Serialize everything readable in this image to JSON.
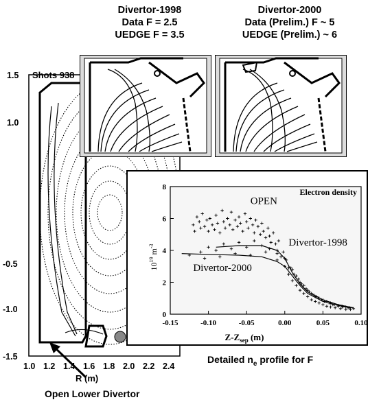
{
  "captions": {
    "divertor_1998": [
      "Divertor-1998",
      "Data F = 2.5",
      "UEDGE F = 3.5"
    ],
    "divertor_2000": [
      "Divertor-2000",
      "Data (Prelim.) F ~ 5",
      "UEDGE (Prelim.) ~ 6"
    ],
    "shots_label": "Shots 938",
    "open_lower_divertor": "Open Lower Divertor",
    "detailed_profile_pre": "Detailed n",
    "detailed_profile_sub": "e",
    "detailed_profile_post": " profile for F"
  },
  "equilibrium_axes": {
    "y_ticks": [
      "1.5",
      "1.0",
      "-0.5",
      "-1.0",
      "-1.5"
    ],
    "x_ticks": [
      "1.0",
      "1.2",
      "1.4",
      "1.6",
      "1.8",
      "2.0",
      "2.2",
      "2.4"
    ],
    "x_label": "R (m)"
  },
  "chart_data": {
    "type": "scatter",
    "title": "Electron density",
    "xlabel_main": "Z-Z",
    "xlabel_sub": "sep",
    "xlabel_unit": " (m)",
    "ylabel_main": "10",
    "ylabel_sup": "19",
    "ylabel_unit": " m",
    "ylabel_unit_sup": "-3",
    "xlim": [
      -0.15,
      0.1
    ],
    "ylim": [
      0,
      8
    ],
    "x_ticks": [
      "-0.15",
      "-0.10",
      "-0.05",
      "0.00",
      "0.05",
      "0.10"
    ],
    "y_ticks": [
      "0",
      "2",
      "4",
      "6",
      "8"
    ],
    "annotations": [
      {
        "text": "OPEN",
        "x": -0.045,
        "y": 6.9
      },
      {
        "text": "Divertor-1998",
        "x": 0.005,
        "y": 4.3
      },
      {
        "text": "Divertor-2000",
        "x": -0.12,
        "y": 2.7
      }
    ],
    "series": [
      {
        "points": [
          [
            -0.12,
            5.6
          ],
          [
            -0.118,
            5.2
          ],
          [
            -0.115,
            6.1
          ],
          [
            -0.112,
            5.8
          ],
          [
            -0.11,
            5.4
          ],
          [
            -0.108,
            6.3
          ],
          [
            -0.105,
            5.5
          ],
          [
            -0.102,
            5.9
          ],
          [
            -0.1,
            5.2
          ],
          [
            -0.098,
            6.0
          ],
          [
            -0.095,
            5.6
          ],
          [
            -0.092,
            5.3
          ],
          [
            -0.09,
            6.2
          ],
          [
            -0.088,
            5.7
          ],
          [
            -0.085,
            5.1
          ],
          [
            -0.082,
            6.5
          ],
          [
            -0.08,
            5.8
          ],
          [
            -0.078,
            5.4
          ],
          [
            -0.075,
            6.0
          ],
          [
            -0.072,
            5.6
          ],
          [
            -0.07,
            6.4
          ],
          [
            -0.068,
            5.3
          ],
          [
            -0.065,
            5.9
          ],
          [
            -0.062,
            5.5
          ],
          [
            -0.06,
            6.1
          ],
          [
            -0.058,
            5.7
          ],
          [
            -0.055,
            5.2
          ],
          [
            -0.052,
            6.3
          ],
          [
            -0.05,
            5.8
          ],
          [
            -0.048,
            5.4
          ],
          [
            -0.045,
            6.0
          ],
          [
            -0.042,
            5.6
          ],
          [
            -0.04,
            5.1
          ],
          [
            -0.038,
            5.9
          ],
          [
            -0.035,
            5.5
          ],
          [
            -0.032,
            5.0
          ],
          [
            -0.03,
            5.7
          ],
          [
            -0.028,
            5.2
          ],
          [
            -0.025,
            4.8
          ],
          [
            -0.022,
            5.4
          ],
          [
            -0.02,
            4.9
          ],
          [
            -0.018,
            4.5
          ],
          [
            -0.015,
            5.1
          ],
          [
            -0.012,
            4.4
          ],
          [
            -0.01,
            4.0
          ],
          [
            -0.008,
            4.6
          ],
          [
            -0.005,
            3.6
          ],
          [
            -0.002,
            3.9
          ],
          [
            0.0,
            3.0
          ],
          [
            0.002,
            3.4
          ],
          [
            0.005,
            2.5
          ],
          [
            0.008,
            2.9
          ],
          [
            0.01,
            2.1
          ],
          [
            0.012,
            2.5
          ],
          [
            0.015,
            1.8
          ],
          [
            0.018,
            2.2
          ],
          [
            0.02,
            1.5
          ],
          [
            0.022,
            1.9
          ],
          [
            0.025,
            1.3
          ],
          [
            0.028,
            1.6
          ],
          [
            0.03,
            1.1
          ],
          [
            0.032,
            1.4
          ],
          [
            0.035,
            0.9
          ],
          [
            0.038,
            1.2
          ],
          [
            0.04,
            0.8
          ],
          [
            0.042,
            1.1
          ],
          [
            0.045,
            0.7
          ],
          [
            0.048,
            0.9
          ],
          [
            0.05,
            0.6
          ],
          [
            0.052,
            0.8
          ],
          [
            0.055,
            0.5
          ],
          [
            0.058,
            0.7
          ],
          [
            0.06,
            0.45
          ],
          [
            0.063,
            0.6
          ],
          [
            0.066,
            0.4
          ],
          [
            0.07,
            0.5
          ],
          [
            0.073,
            0.35
          ],
          [
            0.076,
            0.45
          ],
          [
            0.08,
            0.3
          ],
          [
            0.083,
            0.4
          ],
          [
            0.086,
            0.3
          ],
          [
            0.09,
            0.35
          ],
          [
            -0.11,
            3.9
          ],
          [
            -0.1,
            4.2
          ],
          [
            -0.09,
            4.0
          ],
          [
            -0.08,
            4.4
          ],
          [
            -0.07,
            4.1
          ],
          [
            -0.06,
            4.5
          ],
          [
            -0.05,
            4.2
          ],
          [
            -0.04,
            4.6
          ],
          [
            -0.03,
            4.3
          ],
          [
            -0.02,
            4.1
          ],
          [
            -0.01,
            3.8
          ],
          [
            0.0,
            3.5
          ],
          [
            0.01,
            2.8
          ],
          [
            0.015,
            2.4
          ],
          [
            0.025,
            1.8
          ],
          [
            0.035,
            1.3
          ],
          [
            0.045,
            1.0
          ],
          [
            0.055,
            0.8
          ],
          [
            0.065,
            0.6
          ],
          [
            0.075,
            0.5
          ],
          [
            0.085,
            0.4
          ],
          [
            -0.125,
            3.7
          ],
          [
            -0.105,
            3.5
          ],
          [
            -0.085,
            3.6
          ],
          [
            -0.065,
            3.8
          ],
          [
            -0.045,
            3.7
          ],
          [
            -0.025,
            3.9
          ],
          [
            -0.01,
            3.4
          ],
          [
            0.005,
            2.9
          ],
          [
            0.02,
            2.0
          ],
          [
            0.03,
            1.5
          ],
          [
            0.04,
            1.1
          ],
          [
            0.05,
            0.9
          ],
          [
            0.06,
            0.7
          ],
          [
            0.07,
            0.55
          ],
          [
            0.08,
            0.45
          ]
        ]
      },
      {
        "name": "Divertor-1998 fit",
        "points": [
          [
            -0.09,
            4.2
          ],
          [
            -0.06,
            4.3
          ],
          [
            -0.03,
            4.3
          ],
          [
            -0.01,
            4.0
          ],
          [
            0.0,
            3.5
          ],
          [
            0.01,
            2.6
          ],
          [
            0.02,
            1.9
          ],
          [
            0.03,
            1.4
          ],
          [
            0.05,
            0.9
          ],
          [
            0.07,
            0.6
          ],
          [
            0.09,
            0.4
          ]
        ]
      },
      {
        "name": "Divertor-2000 fit",
        "points": [
          [
            -0.135,
            3.8
          ],
          [
            -0.1,
            3.75
          ],
          [
            -0.06,
            3.7
          ],
          [
            -0.03,
            3.6
          ],
          [
            -0.01,
            3.3
          ],
          [
            0.0,
            3.0
          ],
          [
            0.01,
            2.4
          ],
          [
            0.02,
            1.8
          ],
          [
            0.03,
            1.3
          ],
          [
            0.05,
            0.8
          ],
          [
            0.07,
            0.55
          ],
          [
            0.09,
            0.4
          ]
        ]
      }
    ]
  }
}
